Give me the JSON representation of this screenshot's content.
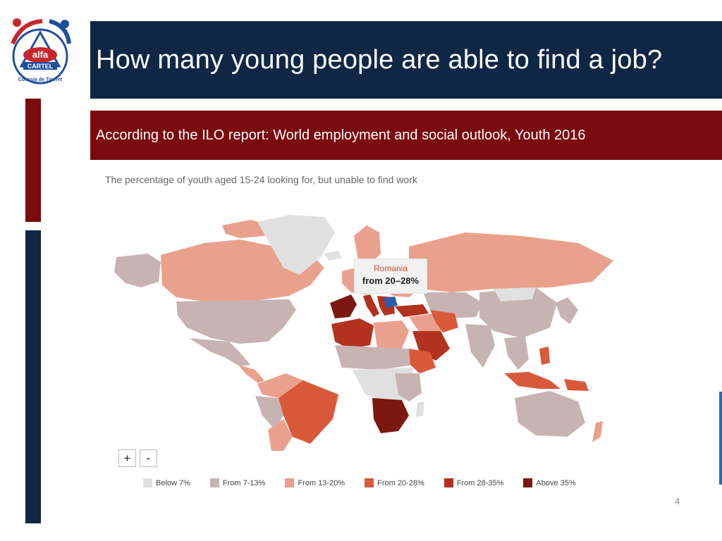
{
  "logo": {
    "brand": "alfa",
    "name": "CARTEL",
    "tagline": "Comisia de Tineret"
  },
  "title": "How many young people are able to find a job?",
  "subtitle": "According to the ILO report: World employment and social outlook, Youth 2016",
  "map": {
    "caption": "The percentage of youth aged 15-24 looking for, but unable to find work",
    "tooltip": {
      "country": "Romania",
      "value": "from 20–28%"
    },
    "zoom_in_label": "+",
    "zoom_out_label": "-",
    "legend": [
      {
        "label": "Below 7%",
        "color": "#e0e0e0"
      },
      {
        "label": "From 7-13%",
        "color": "#c8b3b3"
      },
      {
        "label": "From 13-20%",
        "color": "#e9a18e"
      },
      {
        "label": "From 20-28%",
        "color": "#d9593b"
      },
      {
        "label": "From 28-35%",
        "color": "#b3321f"
      },
      {
        "label": "Above 35%",
        "color": "#7c1810"
      }
    ],
    "highlight_color": "#2a5db0"
  },
  "page_number": "4"
}
